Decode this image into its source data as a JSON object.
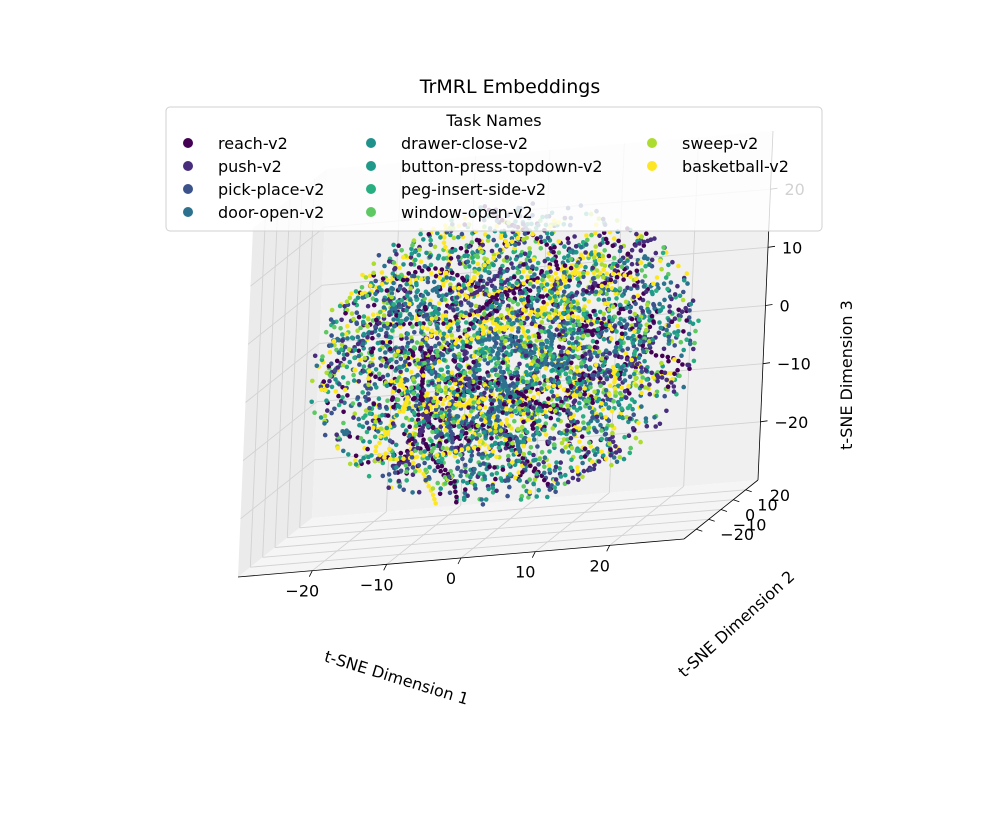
{
  "chart_data": {
    "type": "scatter",
    "projection": "3d",
    "title": "TrMRL Embeddings",
    "legend": {
      "title": "Task Names",
      "placement": "top-center",
      "columns": 3
    },
    "xlabel": "t-SNE Dimension 1",
    "ylabel": "t-SNE Dimension 2",
    "zlabel": "t-SNE Dimension 3",
    "xlim": [
      -30,
      30
    ],
    "ylim": [
      -30,
      30
    ],
    "zlim": [
      -30,
      30
    ],
    "xticks": [
      -20,
      -10,
      0,
      10,
      20
    ],
    "yticks": [
      -20,
      -10,
      0,
      10,
      20
    ],
    "zticks": [
      -20,
      -10,
      0,
      10,
      20
    ],
    "xtick_labels": [
      "−20",
      "−10",
      "0",
      "10",
      "20"
    ],
    "ytick_labels": [
      "−20",
      "−10",
      "0",
      "10",
      "20"
    ],
    "ztick_labels": [
      "−20",
      "−10",
      "0",
      "10",
      "20"
    ],
    "grid": true,
    "cloud_radius": 26,
    "series": [
      {
        "name": "reach-v2",
        "color": "#440154"
      },
      {
        "name": "push-v2",
        "color": "#472d7b"
      },
      {
        "name": "pick-place-v2",
        "color": "#3b528b"
      },
      {
        "name": "door-open-v2",
        "color": "#2c728e"
      },
      {
        "name": "drawer-close-v2",
        "color": "#21918c"
      },
      {
        "name": "button-press-topdown-v2",
        "color": "#1f9a8a"
      },
      {
        "name": "peg-insert-side-v2",
        "color": "#28ae80"
      },
      {
        "name": "window-open-v2",
        "color": "#5ec962"
      },
      {
        "name": "sweep-v2",
        "color": "#addc30"
      },
      {
        "name": "basketball-v2",
        "color": "#fde725"
      }
    ]
  }
}
